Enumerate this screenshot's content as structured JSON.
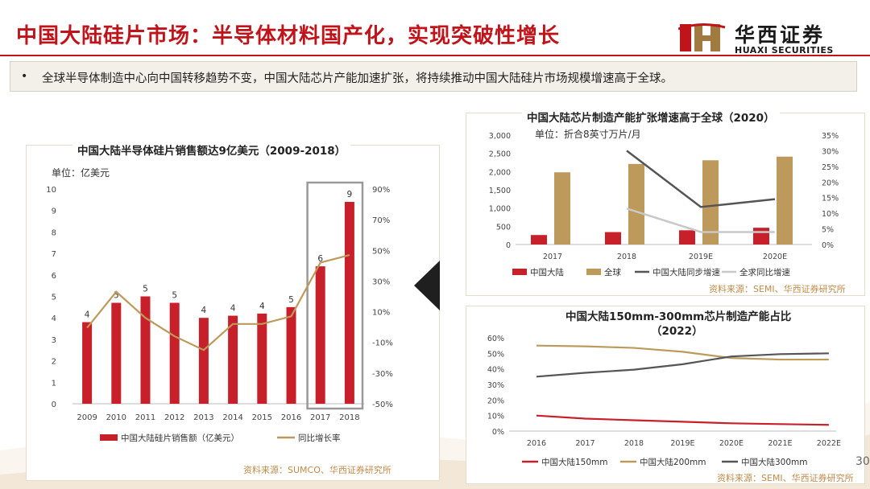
{
  "header": {
    "title": "中国大陆硅片市场：半导体材料国产化，实现突破性增长",
    "logo_cn": "华西证券",
    "logo_en": "HUAXI SECURITIES"
  },
  "bullet": {
    "dot": "•",
    "text": "全球半导体制造中心向中国转移趋势不变，中国大陆芯片产能加速扩张，将持续推动中国大陆硅片市场规模增速高于全球。"
  },
  "page_number": "30",
  "chart1": {
    "title": "中国大陆半导体硅片销售额达9亿美元（2009-2018）",
    "unit": "单位：亿美元",
    "source": "资料来源：SUMCO、华西证券研究所"
  },
  "chart2": {
    "title": "中国大陆芯片制造产能扩张增速高于全球（2020）",
    "unit": "单位：折合8英寸万片/月",
    "source": "资料来源：SEMI、华西证券研究所"
  },
  "chart3": {
    "title_line1": "中国大陆150mm-300mm芯片制造产能占比",
    "title_line2": "（2022）",
    "source": "资料来源：SEMI、华西证券研究所"
  },
  "colors": {
    "red": "#c8202a",
    "gold": "#bd9a5b",
    "dark": "#555555",
    "light": "#c8c8c8",
    "title_red": "#c0141b"
  },
  "chart_data": [
    {
      "type": "bar",
      "categories": [
        "2009",
        "2010",
        "2011",
        "2012",
        "2013",
        "2014",
        "2015",
        "2016",
        "2017",
        "2018"
      ],
      "series": [
        {
          "name": "中国大陆硅片销售额（亿美元）",
          "axis": "left",
          "type": "bar",
          "values": [
            3.8,
            4.7,
            5.0,
            4.7,
            4.0,
            4.1,
            4.2,
            4.5,
            6.4,
            9.4
          ],
          "labels": [
            "4",
            "5",
            "5",
            "5",
            "4",
            "4",
            "4",
            "5",
            "6",
            "9"
          ]
        },
        {
          "name": "同比增长率",
          "axis": "right",
          "type": "line",
          "values": [
            -0.5,
            23,
            6,
            -6,
            -15,
            2,
            2,
            7,
            42,
            47
          ]
        }
      ],
      "ylim": [
        0,
        10
      ],
      "yticks": [
        "0",
        "1",
        "2",
        "3",
        "4",
        "5",
        "6",
        "7",
        "8",
        "9",
        "10"
      ],
      "y2lim": [
        -50,
        90
      ],
      "y2ticks": [
        "-50%",
        "-30%",
        "-10%",
        "10%",
        "30%",
        "50%",
        "70%",
        "90%"
      ],
      "highlight": [
        "2017",
        "2018"
      ],
      "legend_position": "bottom"
    },
    {
      "type": "bar",
      "categories": [
        "2017",
        "2018",
        "2019E",
        "2020E"
      ],
      "series": [
        {
          "name": "中国大陆",
          "axis": "left",
          "type": "bar",
          "values": [
            260,
            340,
            390,
            460
          ]
        },
        {
          "name": "全球",
          "axis": "left",
          "type": "bar",
          "values": [
            1980,
            2210,
            2310,
            2410
          ]
        },
        {
          "name": "中国大陆同步增速",
          "axis": "right",
          "type": "line",
          "values": [
            null,
            30,
            12,
            14.5
          ]
        },
        {
          "name": "全求同比增速",
          "axis": "right",
          "type": "line",
          "values": [
            null,
            11.5,
            4,
            4
          ]
        }
      ],
      "ylim": [
        0,
        3000
      ],
      "yticks": [
        "0",
        "500",
        "1,000",
        "1,500",
        "2,000",
        "2,500",
        "3,000"
      ],
      "y2lim": [
        0,
        35
      ],
      "y2ticks": [
        "0%",
        "5%",
        "10%",
        "15%",
        "20%",
        "25%",
        "30%",
        "35%"
      ],
      "legend_position": "bottom"
    },
    {
      "type": "line",
      "categories": [
        "2016",
        "2017",
        "2018",
        "2019E",
        "2020E",
        "2021E",
        "2022E"
      ],
      "series": [
        {
          "name": "中国大陆150mm",
          "values": [
            10,
            8,
            7,
            6,
            5,
            4.5,
            4
          ]
        },
        {
          "name": "中国大陆200mm",
          "values": [
            55,
            54.5,
            53.5,
            51,
            47,
            46,
            46
          ]
        },
        {
          "name": "中国大陆300mm",
          "values": [
            35,
            37.5,
            39.5,
            43,
            48,
            49.5,
            50
          ]
        }
      ],
      "ylim": [
        0,
        60
      ],
      "yticks": [
        "0%",
        "10%",
        "20%",
        "30%",
        "40%",
        "50%",
        "60%"
      ],
      "legend_position": "bottom"
    }
  ]
}
